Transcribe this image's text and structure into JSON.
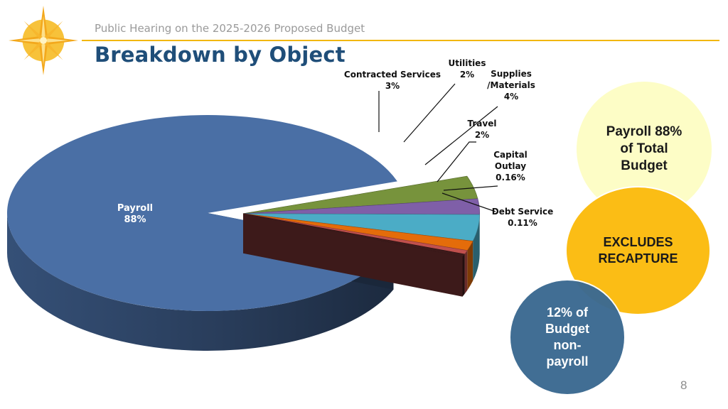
{
  "header": {
    "subtitle": "Public Hearing on the 2025-2026 Proposed Budget",
    "title": "Breakdown by Object"
  },
  "chart_data": {
    "type": "pie",
    "style": "3d-exploded",
    "labels": [
      "Payroll",
      "Contracted Services",
      "Utilities",
      "Supplies /Materials",
      "Travel",
      "Capital Outlay",
      "Debt Service"
    ],
    "values": [
      88,
      3,
      2,
      4,
      2,
      0.16,
      0.11
    ],
    "data_labels": [
      {
        "name": "Payroll",
        "value": "88%"
      },
      {
        "name": "Contracted Services",
        "value": "3%"
      },
      {
        "name": "Utilities",
        "value": "2%"
      },
      {
        "name": "Supplies",
        "name2": "/Materials",
        "value": "4%"
      },
      {
        "name": "Travel",
        "value": "2%"
      },
      {
        "name": "Capital",
        "name2": "Outlay",
        "value": "0.16%"
      },
      {
        "name": "Debt Service",
        "value": "0.11%"
      }
    ],
    "colors": [
      "#4a6fa5",
      "#77933c",
      "#7f5fa8",
      "#4bacc6",
      "#e46c0a",
      "#c0504d",
      "#3d1a1a"
    ]
  },
  "callouts": {
    "payroll_share": "Payroll 88%\nof Total\nBudget",
    "recapture": "EXCLUDES\nRECAPTURE",
    "non_payroll": "12% of\nBudget\nnon-\npayroll"
  },
  "footer": {
    "page_number": "8"
  },
  "colors": {
    "accent": "#f2b705",
    "title": "#1f4e79"
  },
  "icons": {
    "logo": "compass-star-icon"
  }
}
